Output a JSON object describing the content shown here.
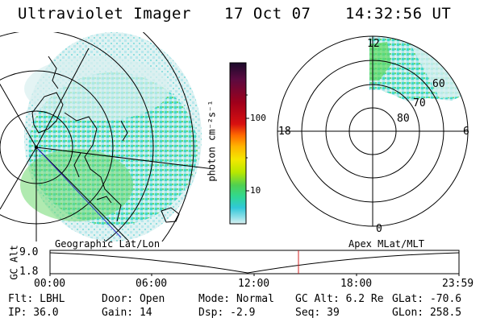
{
  "header": {
    "instrument": "Ultraviolet Imager",
    "date": "17 Oct 07",
    "time": "14:32:56 UT"
  },
  "colorbar": {
    "unit_label": "photon cm⁻²s⁻¹",
    "ticks": [
      "100",
      "10"
    ],
    "colors": [
      "#1a0a2a",
      "#5a0a40",
      "#a0001a",
      "#d81010",
      "#ff6a00",
      "#ffb400",
      "#f4e800",
      "#b8e800",
      "#50d050",
      "#30d890",
      "#30c8d8",
      "#90e0e8",
      "#d8f0f0"
    ]
  },
  "polar_plot": {
    "hour_labels": {
      "top": "12",
      "left": "18",
      "right": "6",
      "bottom": "0"
    },
    "lat_labels": [
      "60",
      "70",
      "80"
    ]
  },
  "altitude_plot": {
    "left_title": "Geographic Lat/Lon",
    "right_title": "Apex MLat/MLT",
    "axis_label": "GC Alt",
    "y_ticks": [
      "9.0",
      "1.8"
    ],
    "x_ticks": [
      "00:00",
      "06:00",
      "12:00",
      "18:00",
      "23:59"
    ]
  },
  "footer": {
    "filter": "Flt: LBHL",
    "ip": "IP: 36.0",
    "door": "Door: Open",
    "gain": "Gain: 14",
    "mode": "Mode: Normal",
    "dsp": "Dsp:   -2.9",
    "gc_alt": "GC Alt: 6.2 Re",
    "seq": "Seq: 39",
    "glat": "GLat: -70.6",
    "glon": "GLon: 258.5"
  },
  "palette": {
    "aurora_light": "#c8ecf0",
    "aurora_cyan": "#40d8c8",
    "aurora_green": "#60d860",
    "current_time_marker": "#d02020"
  }
}
